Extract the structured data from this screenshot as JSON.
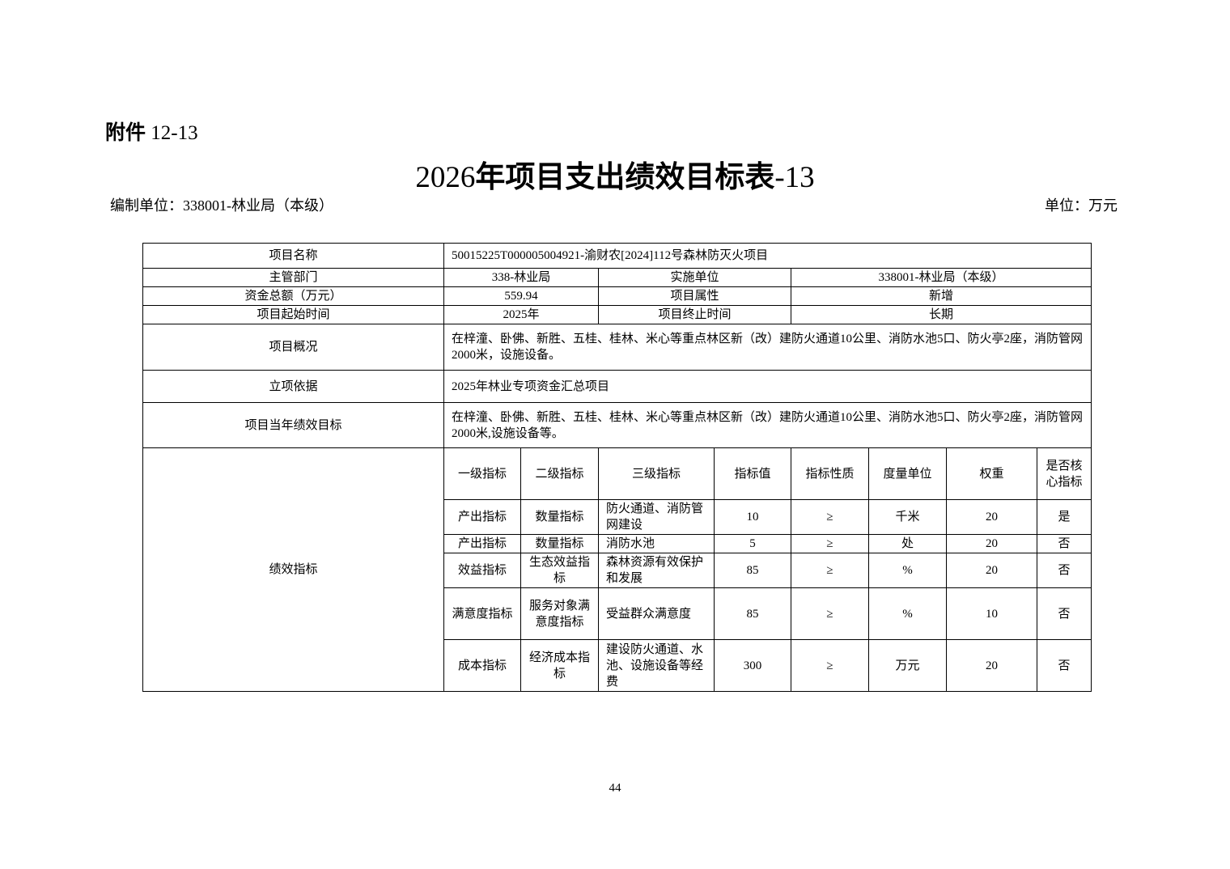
{
  "header": {
    "attachment_label": "附件",
    "attachment_number": "12-13",
    "title_year": "2026",
    "title_text": "年项目支出绩效目标表",
    "title_suffix": "-13",
    "org_label": "编制单位：338001-林业局（本级）",
    "unit_label": "单位：万元"
  },
  "info": {
    "project_name_label": "项目名称",
    "project_name": "50015225T000005004921-渝财农[2024]112号森林防灭火项目",
    "dept_label": "主管部门",
    "dept": "338-林业局",
    "impl_label": "实施单位",
    "impl": "338001-林业局（本级）",
    "funds_label": "资金总额（万元）",
    "funds": "559.94",
    "attr_label": "项目属性",
    "attr": "新增",
    "start_label": "项目起始时间",
    "start": "2025年",
    "end_label": "项目终止时间",
    "end": "长期",
    "overview_label": "项目概况",
    "overview": "在梓潼、卧佛、新胜、五桂、桂林、米心等重点林区新（改）建防火通道10公里、消防水池5口、防火亭2座，消防管网2000米，设施设备。",
    "basis_label": "立项依据",
    "basis": "2025年林业专项资金汇总项目",
    "goal_label": "项目当年绩效目标",
    "goal": "在梓潼、卧佛、新胜、五桂、桂林、米心等重点林区新（改）建防火通道10公里、消防水池5口、防火亭2座，消防管网2000米,设施设备等。"
  },
  "indicators": {
    "section_label": "绩效指标",
    "headers": [
      "一级指标",
      "二级指标",
      "三级指标",
      "指标值",
      "指标性质",
      "度量单位",
      "权重",
      "是否核心指标"
    ],
    "rows": [
      [
        "产出指标",
        "数量指标",
        "防火通道、消防管网建设",
        "10",
        "≥",
        "千米",
        "20",
        "是"
      ],
      [
        "产出指标",
        "数量指标",
        "消防水池",
        "5",
        "≥",
        "处",
        "20",
        "否"
      ],
      [
        "效益指标",
        "生态效益指标",
        "森林资源有效保护和发展",
        "85",
        "≥",
        "%",
        "20",
        "否"
      ],
      [
        "满意度指标",
        "服务对象满意度指标",
        "受益群众满意度",
        "85",
        "≥",
        "%",
        "10",
        "否"
      ],
      [
        "成本指标",
        "经济成本指标",
        "建设防火通道、水池、设施设备等经费",
        "300",
        "≥",
        "万元",
        "20",
        "否"
      ]
    ]
  },
  "footer": {
    "page_number": "44"
  }
}
